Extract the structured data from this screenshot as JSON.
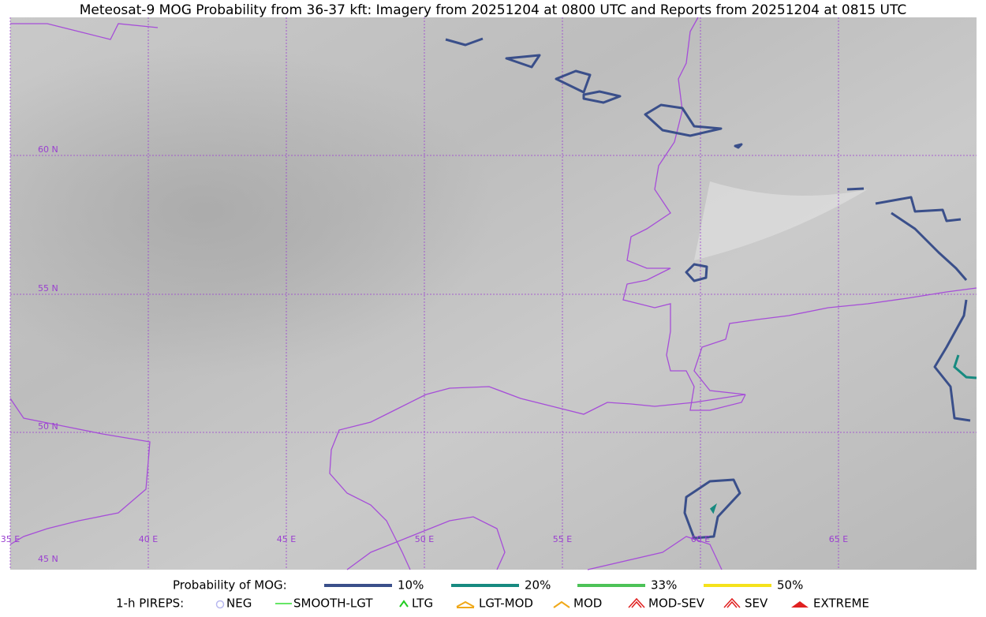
{
  "title": "Meteosat-9 MOG Probability from 36-37 kft: Imagery from 20251204 at 0800 UTC and Reports from 20251204 at 0815 UTC",
  "map": {
    "lat_labels": [
      "60 N",
      "55 N",
      "50 N",
      "45 N"
    ],
    "lon_labels": [
      "35 E",
      "40 E",
      "45 E",
      "50 E",
      "55 E",
      "60 E",
      "65 E"
    ]
  },
  "legend": {
    "mog_label": "Probability of MOG:",
    "mog_levels": [
      "10%",
      "20%",
      "33%",
      "50%"
    ],
    "pireps_label": "1-h PIREPS:",
    "pireps": [
      "NEG",
      "SMOOTH-LGT",
      "LTG",
      "LGT-MOD",
      "MOD",
      "MOD-SEV",
      "SEV",
      "EXTREME"
    ]
  }
}
